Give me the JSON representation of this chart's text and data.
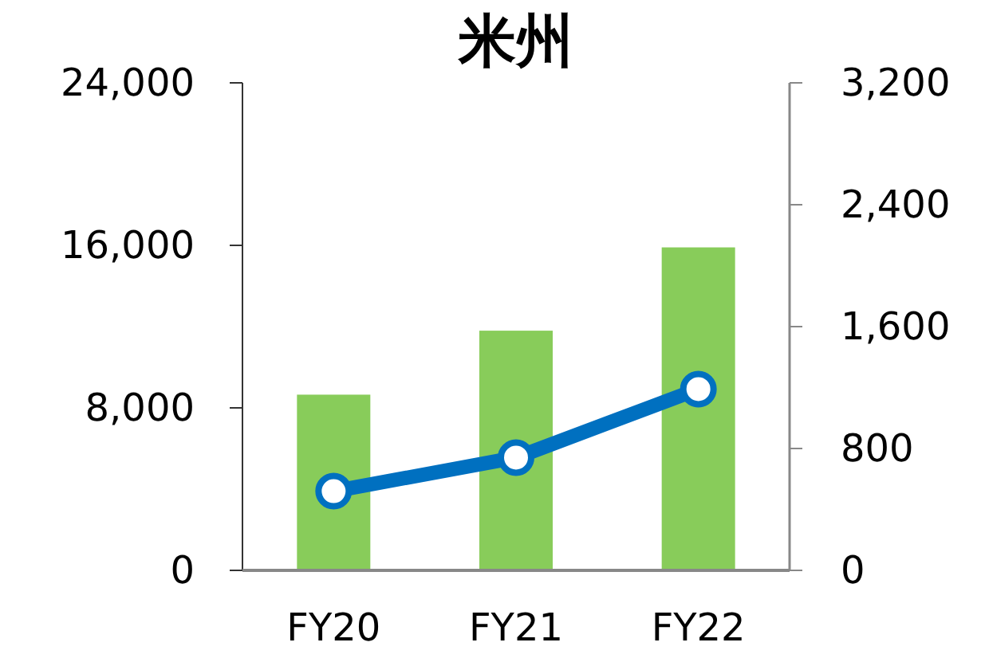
{
  "chart_data": {
    "type": "bar",
    "title": "米州",
    "categories": [
      "FY20",
      "FY21",
      "FY22"
    ],
    "series": [
      {
        "color": "#88cc5a",
        "values": [
          8650,
          11800,
          15900
        ]
      },
      {
        "type": "line",
        "axis": "y2",
        "color": "#0070c0",
        "marker": "circle",
        "values": [
          520,
          740,
          1190
        ]
      }
    ],
    "ylim": [
      0,
      24000
    ],
    "yticks": [
      {
        "value": 0,
        "label": "0"
      },
      {
        "value": 8000,
        "label": "8,000"
      },
      {
        "value": 16000,
        "label": "16,000"
      },
      {
        "value": 24000,
        "label": "24,000"
      }
    ],
    "y2lim": [
      0,
      3200
    ],
    "y2ticks": [
      {
        "value": 0,
        "label": "0"
      },
      {
        "value": 800,
        "label": "800"
      },
      {
        "value": 1600,
        "label": "1,600"
      },
      {
        "value": 2400,
        "label": "2,400"
      },
      {
        "value": 3200,
        "label": "3,200"
      }
    ],
    "grid": false
  }
}
